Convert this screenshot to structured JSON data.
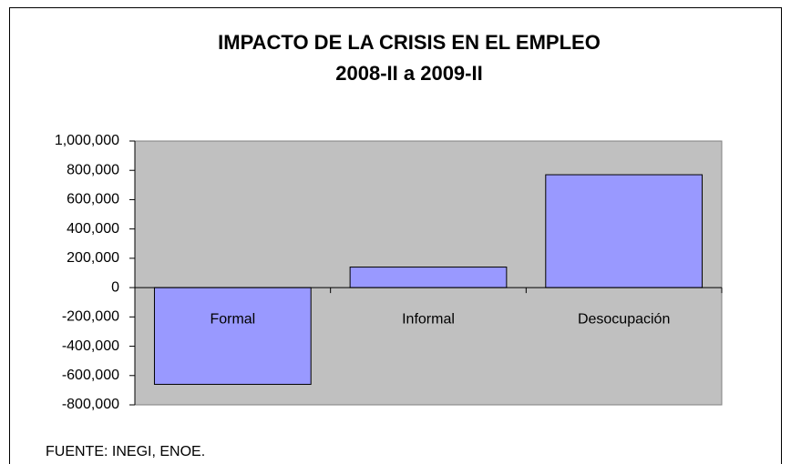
{
  "chart_data": {
    "type": "bar",
    "title": "IMPACTO DE LA CRISIS EN EL EMPLEO",
    "subtitle": "2008-II a 2009-II",
    "categories": [
      "Formal",
      "Informal",
      "Desocupación"
    ],
    "values": [
      -660000,
      140000,
      770000
    ],
    "color": "#9999ff",
    "ylim": [
      -800000,
      1000000
    ],
    "yticks": [
      {
        "value": -800000,
        "label": "-800,000"
      },
      {
        "value": -600000,
        "label": "-600,000"
      },
      {
        "value": -400000,
        "label": "-400,000"
      },
      {
        "value": -200000,
        "label": "-200,000"
      },
      0,
      {
        "value": 200000,
        "label": "200,000"
      },
      {
        "value": 400000,
        "label": "400,000"
      },
      {
        "value": 600000,
        "label": "600,000"
      },
      {
        "value": 800000,
        "label": "800,000"
      },
      {
        "value": 1000000,
        "label": "1,000,000"
      }
    ],
    "grid": false,
    "source": "FUENTE: INEGI, ENOE."
  }
}
